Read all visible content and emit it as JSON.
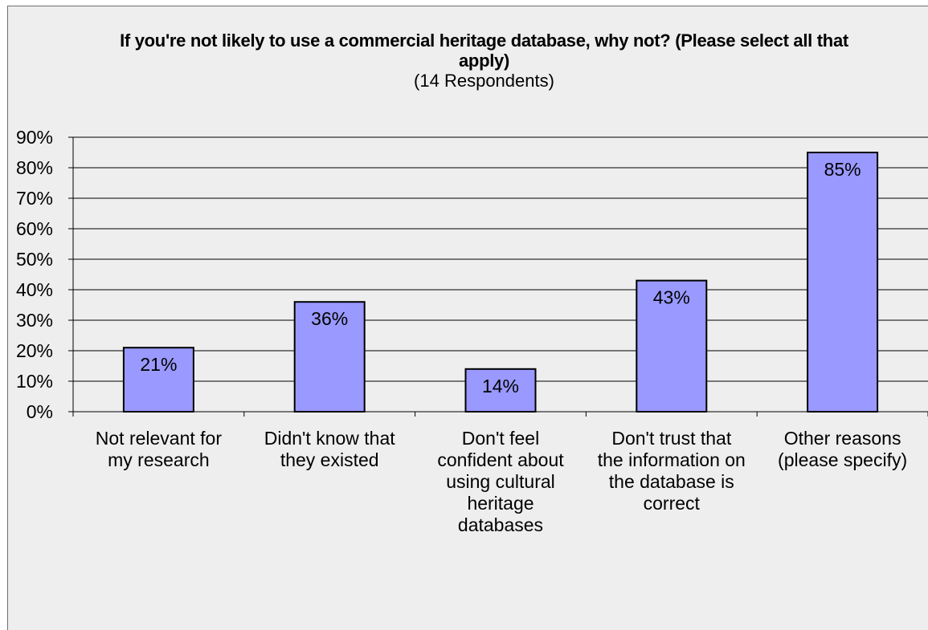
{
  "chart_data": {
    "type": "bar",
    "title": "If you're not likely to use a commercial heritage database, why not? (Please select all that apply)",
    "subtitle": "(14 Respondents)",
    "categories": [
      "Not relevant for my research",
      "Didn't know that they existed",
      "Don't feel confident about using cultural heritage databases",
      "Don't trust that the information on the database is correct",
      "Other reasons (please specify)"
    ],
    "category_lines": [
      [
        "Not relevant for",
        "my research"
      ],
      [
        "Didn't know that",
        "they existed"
      ],
      [
        "Don't feel",
        "confident about",
        "using cultural",
        "heritage",
        "databases"
      ],
      [
        "Don't trust that",
        "the information on",
        "the database is",
        "correct"
      ],
      [
        "Other reasons",
        "(please specify)"
      ]
    ],
    "values": [
      21,
      36,
      14,
      43,
      85
    ],
    "data_labels": [
      "21%",
      "36%",
      "14%",
      "43%",
      "85%"
    ],
    "y_ticks": [
      "0%",
      "10%",
      "20%",
      "30%",
      "40%",
      "50%",
      "60%",
      "70%",
      "80%",
      "90%"
    ],
    "ylim": [
      0,
      90
    ],
    "grid": true,
    "legend": "none",
    "colors": {
      "bar_fill": "#9999ff",
      "bar_stroke": "#000000",
      "background": "#eeeeee",
      "gridline": "#000000"
    }
  }
}
